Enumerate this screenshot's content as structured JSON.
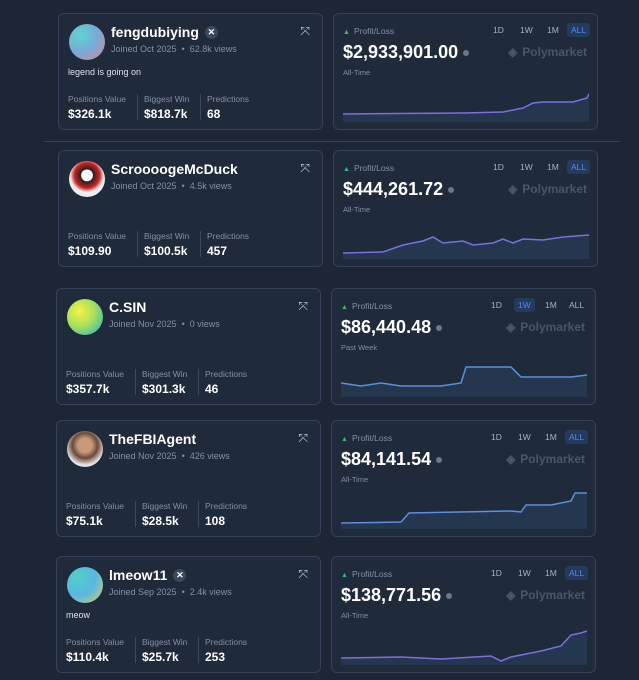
{
  "profiles": [
    {
      "name": "fengdubiying",
      "joined": "Joined Oct 2025",
      "views": "62.8k views",
      "bio": "legend is going on",
      "stats": [
        {
          "label": "Positions Value",
          "value": "$326.1k"
        },
        {
          "label": "Biggest Win",
          "value": "$818.7k"
        },
        {
          "label": "Predictions",
          "value": "68"
        }
      ],
      "pnl_label": "Profit/Loss",
      "pnl": "$2,933,901.00",
      "period": "All-Time",
      "ranges": [
        "1D",
        "1W",
        "1M",
        "ALL"
      ],
      "active_range": 3,
      "brand": "Polymarket"
    },
    {
      "name": "ScroooogeMcDuck",
      "joined": "Joined Oct 2025",
      "views": "4.5k views",
      "stats": [
        {
          "label": "Positions Value",
          "value": "$109.90"
        },
        {
          "label": "Biggest Win",
          "value": "$100.5k"
        },
        {
          "label": "Predictions",
          "value": "457"
        }
      ],
      "pnl_label": "Profit/Loss",
      "pnl": "$444,261.72",
      "period": "All-Time",
      "ranges": [
        "1D",
        "1W",
        "1M",
        "ALL"
      ],
      "active_range": 3,
      "brand": "Polymarket"
    },
    {
      "name": "C.SIN",
      "joined": "Joined Nov 2025",
      "views": "0 views",
      "stats": [
        {
          "label": "Positions Value",
          "value": "$357.7k"
        },
        {
          "label": "Biggest Win",
          "value": "$301.3k"
        },
        {
          "label": "Predictions",
          "value": "46"
        }
      ],
      "pnl_label": "Profit/Loss",
      "pnl": "$86,440.48",
      "period": "Past Week",
      "ranges": [
        "1D",
        "1W",
        "1M",
        "ALL"
      ],
      "active_range": 1,
      "brand": "Polymarket"
    },
    {
      "name": "TheFBIAgent",
      "joined": "Joined Nov 2025",
      "views": "426 views",
      "stats": [
        {
          "label": "Positions Value",
          "value": "$75.1k"
        },
        {
          "label": "Biggest Win",
          "value": "$28.5k"
        },
        {
          "label": "Predictions",
          "value": "108"
        }
      ],
      "pnl_label": "Profit/Loss",
      "pnl": "$84,141.54",
      "period": "All-Time",
      "ranges": [
        "1D",
        "1W",
        "1M",
        "ALL"
      ],
      "active_range": 3,
      "brand": "Polymarket"
    },
    {
      "name": "lmeow11",
      "joined": "Joined Sep 2025",
      "views": "2.4k views",
      "bio": "meow",
      "stats": [
        {
          "label": "Positions Value",
          "value": "$110.4k"
        },
        {
          "label": "Biggest Win",
          "value": "$25.7k"
        },
        {
          "label": "Predictions",
          "value": "253"
        }
      ],
      "pnl_label": "Profit/Loss",
      "pnl": "$138,771.56",
      "period": "All-Time",
      "ranges": [
        "1D",
        "1W",
        "1M",
        "ALL"
      ],
      "active_range": 3,
      "brand": "Polymarket"
    }
  ]
}
